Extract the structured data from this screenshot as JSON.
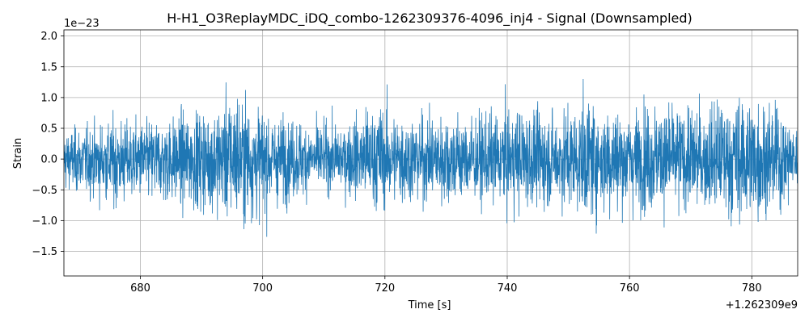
{
  "chart_data": {
    "type": "line",
    "title": "H-H1_O3ReplayMDC_iDQ_combo-1262309376-4096_inj4 - Signal (Downsampled)",
    "xlabel": "Time [s]",
    "ylabel": "Strain",
    "x_offset_label": "+1.262309e9",
    "y_scale_label": "1e−23",
    "xlim": [
      667.5,
      787.5
    ],
    "ylim": [
      -1.9,
      2.1
    ],
    "xticks": [
      680,
      700,
      720,
      740,
      760,
      780
    ],
    "xtick_labels": [
      "680",
      "700",
      "720",
      "740",
      "760",
      "780"
    ],
    "yticks": [
      -1.5,
      -1.0,
      -0.5,
      0.0,
      0.5,
      1.0,
      1.5,
      2.0
    ],
    "ytick_labels": [
      "−1.5",
      "−1.0",
      "−0.5",
      "0.0",
      "0.5",
      "1.0",
      "1.5",
      "2.0"
    ],
    "grid": true,
    "series": [
      {
        "color": "#1f77b4",
        "x_range": [
          667.5,
          787.5
        ],
        "envelope": {
          "t": [
            667.5,
            672,
            676,
            680,
            684,
            688,
            692,
            695.5,
            699,
            702,
            706,
            710,
            714,
            718,
            722,
            726,
            730,
            734,
            738,
            742,
            746,
            750,
            753,
            756,
            760,
            764,
            768,
            772,
            776,
            779,
            782,
            785,
            787.5
          ],
          "upper": [
            0.75,
            0.85,
            1.0,
            0.95,
            1.05,
            1.25,
            1.3,
            1.9,
            1.35,
            1.15,
            1.0,
            0.9,
            1.0,
            1.5,
            1.25,
            1.1,
            1.3,
            1.05,
            1.2,
            1.4,
            1.2,
            1.35,
            1.6,
            1.45,
            1.3,
            1.5,
            1.4,
            1.3,
            1.6,
            1.7,
            1.5,
            1.3,
            0.8
          ],
          "lower": [
            -0.8,
            -1.0,
            -1.3,
            -1.1,
            -1.2,
            -1.3,
            -1.4,
            -1.6,
            -1.55,
            -1.2,
            -1.0,
            -0.8,
            -0.9,
            -1.3,
            -1.2,
            -1.1,
            -1.25,
            -1.1,
            -1.2,
            -1.35,
            -1.25,
            -1.3,
            -1.55,
            -1.45,
            -1.3,
            -1.35,
            -1.3,
            -1.35,
            -1.5,
            -1.75,
            -1.5,
            -1.3,
            -0.85
          ]
        }
      }
    ]
  }
}
